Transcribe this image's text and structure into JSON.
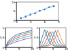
{
  "chart_data": [
    {
      "type": "scatter",
      "x": [
        1,
        2,
        3,
        4,
        5,
        6,
        7,
        8
      ],
      "xlim": [
        0,
        9
      ],
      "xticks": [
        0,
        3,
        6,
        9
      ],
      "ylim": [
        0,
        10
      ],
      "yticks": [
        0,
        5,
        10
      ],
      "series": [
        {
          "type": "scatter",
          "color": "#1f4e9c",
          "marker": "circle",
          "values": [
            1.2,
            2.0,
            3.1,
            3.8,
            5.2,
            5.9,
            7.1,
            7.8
          ]
        },
        {
          "type": "line",
          "color": "#5fa8d8",
          "line_style": "solid",
          "values": [
            1.1,
            2.1,
            3.1,
            4.1,
            5.1,
            6.1,
            7.1,
            8.1
          ]
        }
      ]
    },
    {
      "type": "line",
      "x": [
        0,
        1,
        2,
        3,
        4,
        5,
        6,
        7,
        8,
        9,
        10
      ],
      "xlim": [
        0,
        10
      ],
      "xticks": [
        0,
        5,
        10
      ],
      "ylim": [
        0,
        1
      ],
      "yticks": [
        0,
        0.5,
        1
      ],
      "series": [
        {
          "color": "#1f4e9c",
          "values": [
            0,
            0.3,
            0.45,
            0.55,
            0.62,
            0.68,
            0.72,
            0.76,
            0.8,
            0.83,
            0.86
          ]
        },
        {
          "color": "#2e8b57",
          "values": [
            0,
            0.25,
            0.38,
            0.47,
            0.54,
            0.6,
            0.65,
            0.69,
            0.73,
            0.76,
            0.79
          ]
        },
        {
          "color": "#d62728",
          "values": [
            0,
            0.2,
            0.31,
            0.39,
            0.46,
            0.51,
            0.56,
            0.6,
            0.64,
            0.67,
            0.7
          ]
        },
        {
          "color": "#17a2b8",
          "values": [
            0,
            0.15,
            0.24,
            0.31,
            0.37,
            0.42,
            0.46,
            0.5,
            0.54,
            0.57,
            0.6
          ]
        },
        {
          "color": "#7b3fa0",
          "values": [
            0,
            0.1,
            0.17,
            0.23,
            0.28,
            0.32,
            0.36,
            0.4,
            0.43,
            0.46,
            0.49
          ]
        }
      ]
    },
    {
      "type": "line",
      "x": [
        0,
        1,
        2,
        3,
        4,
        5,
        6,
        7,
        8,
        9,
        10
      ],
      "xlim": [
        0,
        10
      ],
      "xticks": [
        0,
        5,
        10
      ],
      "ylim": [
        0,
        1
      ],
      "yticks": [
        0,
        0.5,
        1
      ],
      "series": [
        {
          "color": "#1f4e9c",
          "values": [
            0.1,
            0.5,
            0.9,
            0.5,
            0.2,
            0.1,
            0.05,
            0,
            0,
            0,
            0
          ]
        },
        {
          "color": "#2e8b57",
          "values": [
            0.05,
            0.2,
            0.5,
            0.85,
            0.5,
            0.2,
            0.1,
            0.05,
            0,
            0,
            0
          ]
        },
        {
          "color": "#d62728",
          "values": [
            0,
            0.1,
            0.2,
            0.5,
            0.8,
            0.5,
            0.2,
            0.1,
            0.05,
            0,
            0
          ]
        },
        {
          "color": "#17a2b8",
          "values": [
            0,
            0.05,
            0.1,
            0.2,
            0.5,
            0.8,
            0.5,
            0.2,
            0.1,
            0.05,
            0
          ]
        },
        {
          "color": "#7b3fa0",
          "values": [
            0,
            0,
            0.05,
            0.1,
            0.2,
            0.5,
            0.85,
            0.5,
            0.2,
            0.1,
            0.05
          ]
        },
        {
          "color": "#e08a1e",
          "values": [
            0,
            0,
            0,
            0.05,
            0.1,
            0.2,
            0.5,
            0.9,
            0.5,
            0.2,
            0.1
          ]
        }
      ]
    }
  ]
}
